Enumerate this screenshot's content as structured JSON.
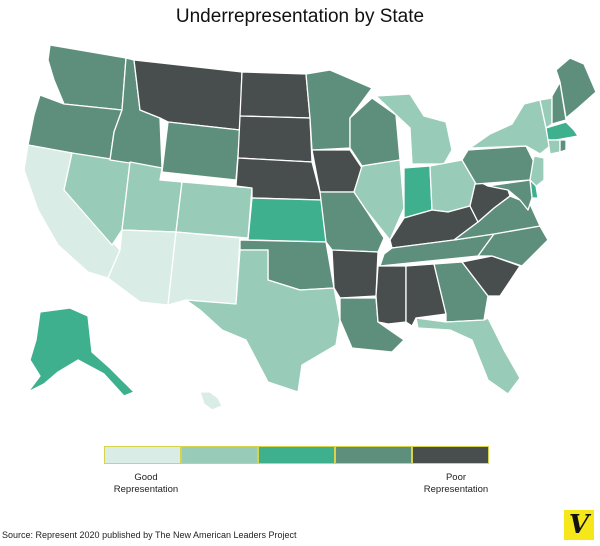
{
  "title": "Underrepresentation by State",
  "colors": {
    "level1": "#d9ece6",
    "level2": "#98cbb8",
    "level3": "#3fb08e",
    "level4": "#5e8f7c",
    "level5": "#474e4d",
    "legend_border": "#d8d44a",
    "logo_bg": "#f6e71b"
  },
  "legend": {
    "good_label": "Good Representation",
    "poor_label": "Poor Representation",
    "levels": [
      "level1",
      "level2",
      "level3",
      "level4",
      "level5"
    ]
  },
  "states": [
    {
      "code": "WA",
      "level": "level4"
    },
    {
      "code": "OR",
      "level": "level4"
    },
    {
      "code": "CA",
      "level": "level1"
    },
    {
      "code": "NV",
      "level": "level2"
    },
    {
      "code": "ID",
      "level": "level4"
    },
    {
      "code": "MT",
      "level": "level5"
    },
    {
      "code": "WY",
      "level": "level4"
    },
    {
      "code": "UT",
      "level": "level2"
    },
    {
      "code": "AZ",
      "level": "level1"
    },
    {
      "code": "CO",
      "level": "level2"
    },
    {
      "code": "NM",
      "level": "level1"
    },
    {
      "code": "ND",
      "level": "level5"
    },
    {
      "code": "SD",
      "level": "level5"
    },
    {
      "code": "NE",
      "level": "level5"
    },
    {
      "code": "KS",
      "level": "level3"
    },
    {
      "code": "OK",
      "level": "level4"
    },
    {
      "code": "TX",
      "level": "level2"
    },
    {
      "code": "MN",
      "level": "level4"
    },
    {
      "code": "IA",
      "level": "level5"
    },
    {
      "code": "MO",
      "level": "level4"
    },
    {
      "code": "AR",
      "level": "level5"
    },
    {
      "code": "LA",
      "level": "level4"
    },
    {
      "code": "WI",
      "level": "level4"
    },
    {
      "code": "IL",
      "level": "level2"
    },
    {
      "code": "MI",
      "level": "level2"
    },
    {
      "code": "IN",
      "level": "level3"
    },
    {
      "code": "OH",
      "level": "level2"
    },
    {
      "code": "KY",
      "level": "level5"
    },
    {
      "code": "TN",
      "level": "level4"
    },
    {
      "code": "MS",
      "level": "level5"
    },
    {
      "code": "AL",
      "level": "level5"
    },
    {
      "code": "GA",
      "level": "level4"
    },
    {
      "code": "FL",
      "level": "level2"
    },
    {
      "code": "SC",
      "level": "level5"
    },
    {
      "code": "NC",
      "level": "level4"
    },
    {
      "code": "VA",
      "level": "level4"
    },
    {
      "code": "WV",
      "level": "level5"
    },
    {
      "code": "PA",
      "level": "level4"
    },
    {
      "code": "NY",
      "level": "level2"
    },
    {
      "code": "VT",
      "level": "level2"
    },
    {
      "code": "NH",
      "level": "level4"
    },
    {
      "code": "ME",
      "level": "level4"
    },
    {
      "code": "MA",
      "level": "level3"
    },
    {
      "code": "CT",
      "level": "level2"
    },
    {
      "code": "RI",
      "level": "level4"
    },
    {
      "code": "NJ",
      "level": "level2"
    },
    {
      "code": "DE",
      "level": "level3"
    },
    {
      "code": "MD",
      "level": "level4"
    },
    {
      "code": "AK",
      "level": "level3"
    },
    {
      "code": "HI",
      "level": "level1"
    }
  ],
  "source": "Source: Represent 2020 published by The New American Leaders Project",
  "logo_letter": "V"
}
